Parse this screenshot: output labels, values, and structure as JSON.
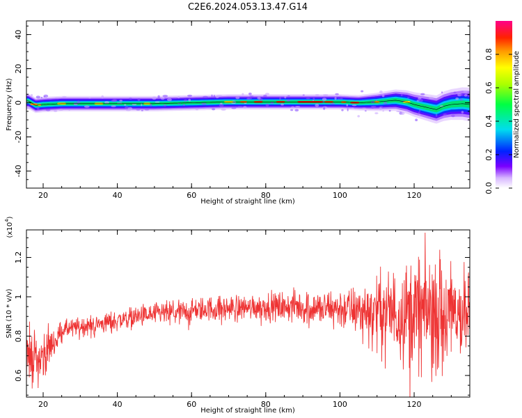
{
  "title": "C2E6.2024.053.13.47.G14",
  "chart_data": [
    {
      "type": "heatmap",
      "xlabel": "Height of straight line (km)",
      "ylabel": "Frequency (Hz)",
      "xlim": [
        15.5,
        135
      ],
      "ylim": [
        -50,
        48
      ],
      "xticks": [
        20,
        40,
        60,
        80,
        100,
        120
      ],
      "yticks": [
        -40,
        -20,
        0,
        20,
        40
      ],
      "colorbar": {
        "label": "Normalized spectral amplitude",
        "range": [
          0,
          1
        ],
        "ticks": [
          "0.0",
          "0.2",
          "0.4",
          "0.6",
          "0.8"
        ]
      },
      "ridge_frequency_hz": {
        "x": [
          16,
          18,
          20,
          25,
          30,
          40,
          50,
          60,
          70,
          80,
          90,
          100,
          105,
          110,
          115,
          118,
          120,
          122,
          124,
          126,
          128,
          130,
          133,
          135
        ],
        "y": [
          1,
          -1.5,
          -1,
          -0.5,
          -0.5,
          -0.5,
          -0.5,
          0,
          0.5,
          0.5,
          0.5,
          0.5,
          0,
          0.5,
          1.5,
          0.5,
          -1,
          -2,
          -3,
          -4,
          -2,
          -1,
          -0.5,
          -1
        ]
      }
    },
    {
      "type": "line",
      "xlabel": "Height of straight line (km)",
      "ylabel": "SNR (10 * v/v)",
      "y_multiplier": "(x10",
      "y_multiplier_exp": "4",
      "y_multiplier_close": ")",
      "xlim": [
        15.5,
        135
      ],
      "ylim": [
        0.49,
        1.34
      ],
      "xticks": [
        20,
        40,
        60,
        80,
        100,
        120
      ],
      "yticks": [
        0.6,
        0.8,
        1.0,
        1.2
      ],
      "color": "#ee3333",
      "trend": {
        "x": [
          15.5,
          17,
          19,
          22,
          25,
          30,
          35,
          40,
          45,
          50,
          55,
          60,
          65,
          70,
          75,
          80,
          85,
          90,
          95,
          100,
          105,
          110,
          115,
          120,
          125,
          130,
          135
        ],
        "y": [
          0.72,
          0.7,
          0.68,
          0.75,
          0.83,
          0.85,
          0.86,
          0.88,
          0.9,
          0.91,
          0.92,
          0.93,
          0.94,
          0.94,
          0.95,
          0.95,
          0.95,
          0.95,
          0.94,
          0.94,
          0.93,
          0.93,
          0.92,
          0.92,
          0.92,
          0.92,
          0.92
        ]
      },
      "noise_amplitude": {
        "x": [
          15.5,
          20,
          25,
          40,
          60,
          80,
          95,
          105,
          110,
          115,
          120,
          125,
          130,
          135
        ],
        "y": [
          0.1,
          0.08,
          0.03,
          0.035,
          0.04,
          0.045,
          0.06,
          0.08,
          0.12,
          0.15,
          0.19,
          0.2,
          0.17,
          0.15
        ]
      }
    }
  ]
}
